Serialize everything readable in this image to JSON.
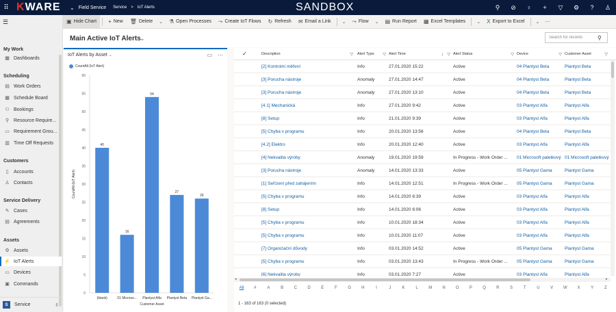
{
  "topbar": {
    "logo_k": "K",
    "logo_rest": "WARE",
    "app_name": "Field Service",
    "breadcrumb": [
      "Service",
      "IoT Alerts"
    ],
    "environment": "SANDBOX"
  },
  "commands": [
    {
      "label": "Hide Chart",
      "icon": "chart-icon",
      "glyph": "▣"
    },
    {
      "label": "New",
      "icon": "plus-icon",
      "glyph": "+"
    },
    {
      "label": "Delete",
      "icon": "trash-icon",
      "glyph": "🗑"
    },
    {
      "label": "Open Processes",
      "icon": "process-icon",
      "glyph": "⚗"
    },
    {
      "label": "Create IoT Flows",
      "icon": "flow-icon",
      "glyph": "⤳"
    },
    {
      "label": "Refresh",
      "icon": "refresh-icon",
      "glyph": "↻"
    },
    {
      "label": "Email a Link",
      "icon": "email-icon",
      "glyph": "✉"
    },
    {
      "label": "Flow",
      "icon": "flow-icon",
      "glyph": "⤳"
    },
    {
      "label": "Run Report",
      "icon": "report-icon",
      "glyph": "▤"
    },
    {
      "label": "Excel Templates",
      "icon": "excel-templates-icon",
      "glyph": "▦"
    },
    {
      "label": "Export to Excel",
      "icon": "excel-icon",
      "glyph": "X"
    }
  ],
  "sidebar": {
    "sections": [
      {
        "title": "My Work",
        "items": [
          {
            "label": "Dashboards",
            "icon": "dashboard-icon",
            "glyph": "▦"
          }
        ]
      },
      {
        "title": "Scheduling",
        "items": [
          {
            "label": "Work Orders",
            "icon": "work-order-icon",
            "glyph": "▤"
          },
          {
            "label": "Schedule Board",
            "icon": "schedule-board-icon",
            "glyph": "▦"
          },
          {
            "label": "Bookings",
            "icon": "bookings-icon",
            "glyph": "⚇"
          },
          {
            "label": "Resource Require...",
            "icon": "resource-icon",
            "glyph": "⚲"
          },
          {
            "label": "Requirement Grou...",
            "icon": "requirement-group-icon",
            "glyph": "▭"
          },
          {
            "label": "Time Off Requests",
            "icon": "time-off-icon",
            "glyph": "▥"
          }
        ]
      },
      {
        "title": "Customers",
        "items": [
          {
            "label": "Accounts",
            "icon": "accounts-icon",
            "glyph": "▯"
          },
          {
            "label": "Contacts",
            "icon": "contacts-icon",
            "glyph": "♙"
          }
        ]
      },
      {
        "title": "Service Delivery",
        "items": [
          {
            "label": "Cases",
            "icon": "cases-icon",
            "glyph": "✎"
          },
          {
            "label": "Agreements",
            "icon": "agreements-icon",
            "glyph": "▤"
          }
        ]
      },
      {
        "title": "Assets",
        "items": [
          {
            "label": "Assets",
            "icon": "assets-icon",
            "glyph": "⚙"
          },
          {
            "label": "IoT Alerts",
            "icon": "iot-alerts-icon",
            "glyph": "⚡",
            "selected": true
          },
          {
            "label": "Devices",
            "icon": "devices-icon",
            "glyph": "▭"
          },
          {
            "label": "Commands",
            "icon": "commands-icon",
            "glyph": "▣"
          }
        ]
      }
    ],
    "area": {
      "badge": "S",
      "label": "Service"
    }
  },
  "view": {
    "title": "Main Active IoT Alerts",
    "search_placeholder": "Search for records"
  },
  "chart": {
    "title": "IoT Alerts by Asset",
    "legend": "CountAll (IoT Alert)"
  },
  "chart_data": {
    "type": "bar",
    "title": "IoT Alerts by Asset",
    "categories": [
      "(blank)",
      "01 Microso...",
      "Plantyst Alfa",
      "Plantyst Beta",
      "Plantyst Ga..."
    ],
    "series": [
      {
        "name": "CountAll (IoT Alert)",
        "values": [
          40,
          16,
          54,
          27,
          26
        ],
        "color": "#4c8ad8"
      }
    ],
    "xlabel": "Customer Asset",
    "ylabel": "CountAll (IoT Alert)",
    "ylim": [
      0,
      60
    ],
    "yticks": [
      0,
      5,
      10,
      15,
      20,
      25,
      30,
      35,
      40,
      45,
      50,
      55,
      60
    ],
    "grid": false,
    "legend_position": "top-left"
  },
  "grid": {
    "columns": [
      {
        "label": "Description",
        "key": "description",
        "link": true
      },
      {
        "label": "Alert Type",
        "key": "type",
        "link": false
      },
      {
        "label": "Alert Time",
        "key": "time",
        "link": false,
        "sort": "↓"
      },
      {
        "label": "Alert Status",
        "key": "status",
        "link": false
      },
      {
        "label": "Device",
        "key": "device",
        "link": true
      },
      {
        "label": "Customer Asset",
        "key": "asset",
        "link": true
      }
    ],
    "rows": [
      {
        "description": "[2] Kontrolní měření",
        "type": "Info",
        "time": "27.01.2020 15:22",
        "status": "Active",
        "device": "04 Plantyst Beta",
        "asset": "Plantyst Beta"
      },
      {
        "description": "[3] Porucha nástroje",
        "type": "Anomaly",
        "time": "27.01.2020 14:47",
        "status": "Active",
        "device": "04 Plantyst Beta",
        "asset": "Plantyst Beta"
      },
      {
        "description": "[3] Porucha nástroje",
        "type": "Anomaly",
        "time": "27.01.2020 13:10",
        "status": "Active",
        "device": "04 Plantyst Beta",
        "asset": "Plantyst Beta"
      },
      {
        "description": "[4.1] Mechanická",
        "type": "Info",
        "time": "27.01.2020 9:42",
        "status": "Active",
        "device": "03 Plantyst Alfa",
        "asset": "Plantyst Alfa"
      },
      {
        "description": "[8] Setup",
        "type": "Info",
        "time": "21.01.2020 9:39",
        "status": "Active",
        "device": "03 Plantyst Alfa",
        "asset": "Plantyst Alfa"
      },
      {
        "description": "[5] Chyba v programu",
        "type": "Info",
        "time": "20.01.2020 13:56",
        "status": "Active",
        "device": "04 Plantyst Beta",
        "asset": "Plantyst Beta"
      },
      {
        "description": "[4.2] Elektro",
        "type": "Info",
        "time": "20.01.2020 12:40",
        "status": "Active",
        "device": "03 Plantyst Alfa",
        "asset": "Plantyst Alfa"
      },
      {
        "description": "[4] Nekvalita výroby",
        "type": "Anomaly",
        "time": "19.01.2020 19:59",
        "status": "In Progress - Work Order ...",
        "device": "01 Microsoft paletkový",
        "asset": "01 Microsoft paletkový"
      },
      {
        "description": "[3] Porucha nástroje",
        "type": "Anomaly",
        "time": "14.01.2020 13:33",
        "status": "Active",
        "device": "05 Plantyst Gama",
        "asset": "Plantyst Gama"
      },
      {
        "description": "[1] Seřízení před zahájením",
        "type": "Info",
        "time": "14.01.2020 12:51",
        "status": "In Progress - Work Order ...",
        "device": "05 Plantyst Gama",
        "asset": "Plantyst Gama"
      },
      {
        "description": "[5] Chyba v programu",
        "type": "Info",
        "time": "14.01.2020 6:39",
        "status": "Active",
        "device": "03 Plantyst Alfa",
        "asset": "Plantyst Alfa"
      },
      {
        "description": "[8] Setup",
        "type": "Info",
        "time": "14.01.2020 6:06",
        "status": "Active",
        "device": "03 Plantyst Alfa",
        "asset": "Plantyst Alfa"
      },
      {
        "description": "[5] Chyba v programu",
        "type": "Info",
        "time": "10.01.2020 18:34",
        "status": "Active",
        "device": "03 Plantyst Alfa",
        "asset": "Plantyst Alfa"
      },
      {
        "description": "[5] Chyba v programu",
        "type": "Info",
        "time": "10.01.2020 11:07",
        "status": "Active",
        "device": "03 Plantyst Alfa",
        "asset": "Plantyst Alfa"
      },
      {
        "description": "[7] Organizační důvody",
        "type": "Info",
        "time": "03.01.2020 14:52",
        "status": "Active",
        "device": "05 Plantyst Gama",
        "asset": "Plantyst Gama"
      },
      {
        "description": "[5] Chyba v programu",
        "type": "Info",
        "time": "03.01.2020 13:43",
        "status": "In Progress - Work Order ...",
        "device": "05 Plantyst Gama",
        "asset": "Plantyst Gama"
      },
      {
        "description": "[6] Nekvalita výroby",
        "type": "Info",
        "time": "03.01.2020 7:27",
        "status": "Active",
        "device": "03 Plantyst Alfa",
        "asset": "Plantyst Alfa"
      }
    ],
    "alphabet": [
      "All",
      "#",
      "A",
      "B",
      "C",
      "D",
      "E",
      "F",
      "G",
      "H",
      "I",
      "J",
      "K",
      "L",
      "M",
      "N",
      "O",
      "P",
      "Q",
      "R",
      "S",
      "T",
      "U",
      "V",
      "W",
      "X",
      "Y",
      "Z"
    ],
    "footer": "1 - 163 of 163 (0 selected)"
  }
}
